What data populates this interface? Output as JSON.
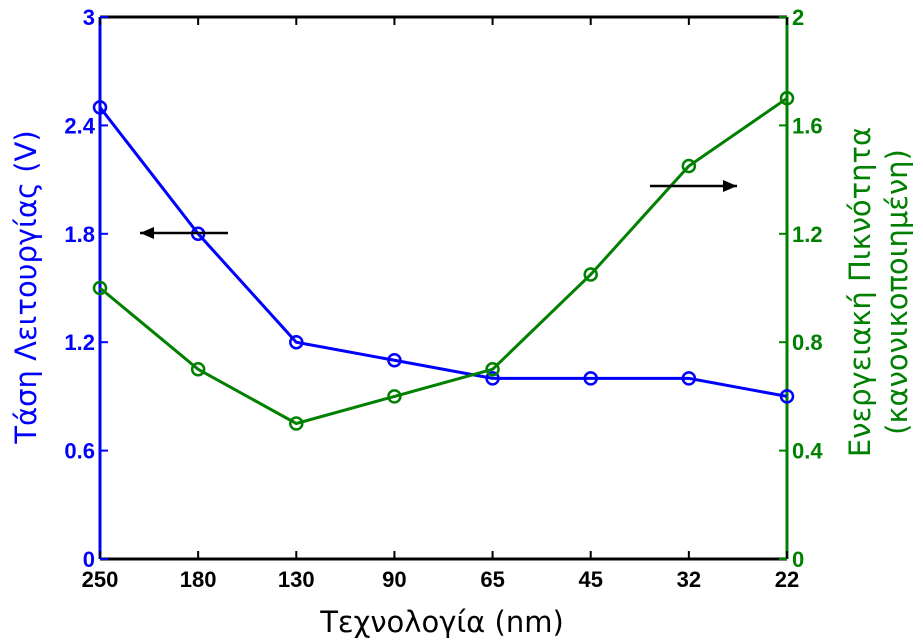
{
  "chart_data": {
    "type": "line",
    "categories": [
      "250",
      "180",
      "130",
      "90",
      "65",
      "45",
      "32",
      "22"
    ],
    "xlabel": "Τεχνολογία (nm)",
    "ylabel_left": "Τάση Λειτουργίας (V)",
    "ylabel_right_line1": "Ενεργειακή Πικνότητα",
    "ylabel_right_line2": "(κανονικοποιημένη)",
    "ylim_left": [
      0,
      3
    ],
    "yticks_left": [
      "0",
      "0.6",
      "1.2",
      "1.8",
      "2.4",
      "3"
    ],
    "ylim_right": [
      0,
      2
    ],
    "yticks_right": [
      "0",
      "0.4",
      "0.8",
      "1.2",
      "1.6",
      "2"
    ],
    "grid": false,
    "series": [
      {
        "axis": "left",
        "color": "#0000ff",
        "values": [
          2.5,
          1.8,
          1.2,
          1.1,
          1.0,
          1.0,
          1.0,
          0.9
        ]
      },
      {
        "axis": "right",
        "color": "#008000",
        "values": [
          1.0,
          0.7,
          0.5,
          0.6,
          0.7,
          1.05,
          1.45,
          1.7
        ]
      }
    ],
    "annotations": [
      {
        "type": "arrow",
        "direction": "left",
        "points_to": "left-axis"
      },
      {
        "type": "arrow",
        "direction": "right",
        "points_to": "right-axis"
      }
    ]
  }
}
